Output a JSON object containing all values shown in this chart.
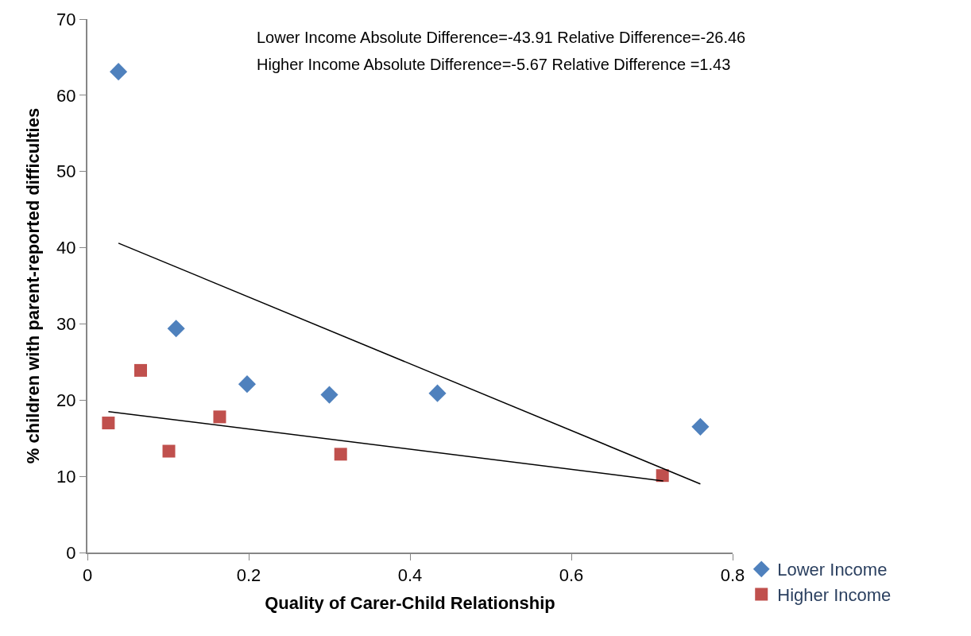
{
  "chart_data": {
    "type": "scatter",
    "xlabel": "Quality of Carer-Child Relationship",
    "ylabel": "% children with parent-reported difficulties",
    "annotations": [
      "Lower Income Absolute Difference=-43.91 Relative Difference=-26.46",
      "Higher Income Absolute Difference=-5.67 Relative Difference =1.43"
    ],
    "series": [
      {
        "name": "Lower Income",
        "color": "#4f81bd",
        "marker": "diamond",
        "x": [
          0.0385,
          0.11,
          0.198,
          0.3,
          0.434,
          0.76
        ],
        "values": [
          63.1,
          29.4,
          22.1,
          20.7,
          20.9,
          16.5
        ]
      },
      {
        "name": "Higher Income",
        "color": "#c0504d",
        "marker": "square",
        "x": [
          0.026,
          0.066,
          0.101,
          0.164,
          0.314,
          0.713
        ],
        "values": [
          17.0,
          23.9,
          13.3,
          17.8,
          12.9,
          10.1
        ]
      },
      {
        "type": "line",
        "color": "#000000",
        "x": [
          0.0385,
          0.76
        ],
        "values": [
          40.6,
          9.0
        ]
      },
      {
        "type": "line",
        "color": "#000000",
        "x": [
          0.026,
          0.714
        ],
        "values": [
          18.5,
          9.4
        ]
      }
    ],
    "xlim": [
      0,
      0.8
    ],
    "xticks": [
      0,
      0.2,
      0.4,
      0.6,
      0.8
    ],
    "ylim": [
      0,
      70
    ],
    "yticks": [
      0,
      10,
      20,
      30,
      40,
      50,
      60,
      70
    ],
    "legend": "bottom right"
  }
}
